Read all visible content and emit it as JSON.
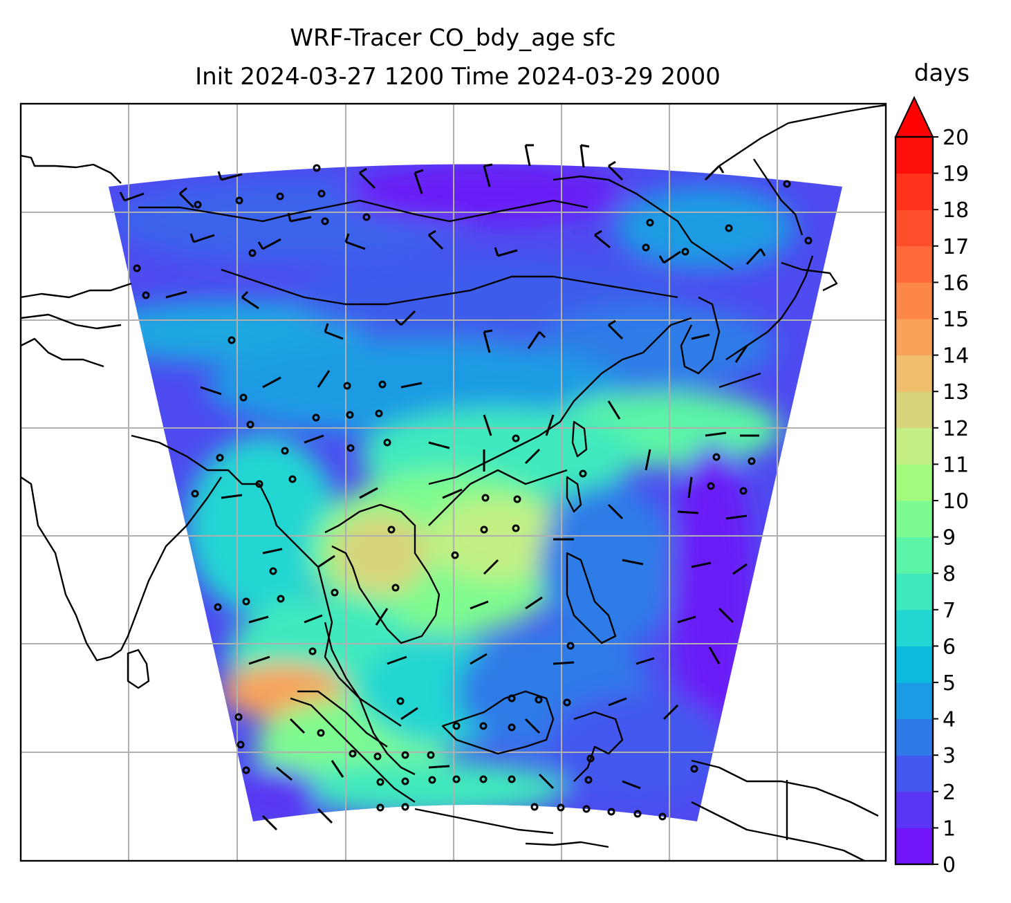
{
  "title": {
    "line1": "WRF-Tracer CO_bdy_age sfc",
    "line2": "Init 2024-03-27 1200 Time 2024-03-29 2000"
  },
  "colorbar": {
    "label": "days",
    "ticks": [
      "0",
      "1",
      "2",
      "3",
      "4",
      "5",
      "6",
      "7",
      "8",
      "9",
      "10",
      "11",
      "12",
      "13",
      "14",
      "15",
      "16",
      "17",
      "18",
      "19",
      "20"
    ],
    "colors": [
      "#7114f8",
      "#5a35f3",
      "#4358ee",
      "#2e7be8",
      "#1a9be3",
      "#0bbadd",
      "#22d6d2",
      "#3fe9bd",
      "#5cf4a6",
      "#7efb90",
      "#a2fb7c",
      "#c3ef84",
      "#d8d47c",
      "#efbf6e",
      "#f9a35a",
      "#fc8748",
      "#fe6b39",
      "#ff4f2a",
      "#ff321b",
      "#ff0f0a"
    ],
    "extend_color": "#ff0000"
  },
  "map": {
    "background": "#ffffff",
    "gridline_color": "#b0b0b0",
    "coastline_color": "#000000",
    "grid": true
  }
}
